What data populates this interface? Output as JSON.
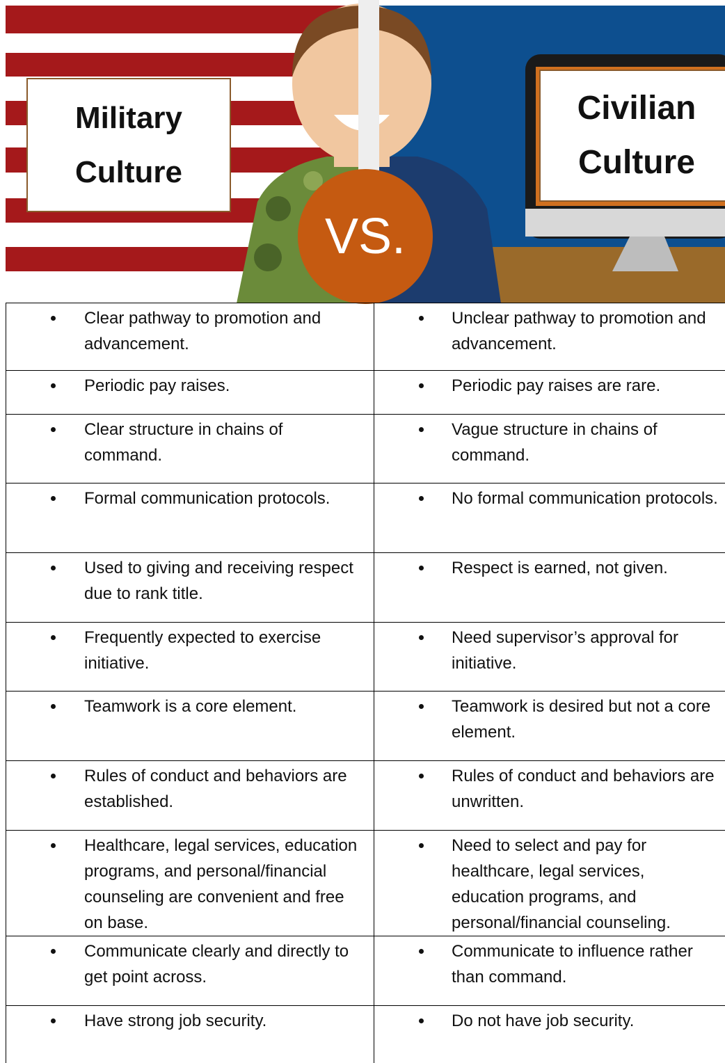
{
  "header": {
    "left_title": "Military Culture",
    "right_title": "Civilian Culture",
    "versus": "VS."
  },
  "table": {
    "rows": [
      [
        "Clear pathway to promotion and advancement.",
        "Unclear pathway to promotion and advancement."
      ],
      [
        "Periodic pay raises.",
        "Periodic pay raises are rare."
      ],
      [
        "Clear structure in chains of command.",
        "Vague structure in chains of command."
      ],
      [
        "Formal communication protocols.",
        "No formal communication protocols."
      ],
      [
        "Used to giving and receiving respect due to rank title.",
        "Respect is earned, not given."
      ],
      [
        "Frequently expected to exercise initiative.",
        "Need supervisor’s approval for initiative."
      ],
      [
        "Teamwork is a core element.",
        "Teamwork is desired but not a core element."
      ],
      [
        "Rules of conduct and behaviors are established.",
        "Rules of conduct and behaviors are unwritten."
      ],
      [
        "Healthcare, legal services, education programs, and personal/financial counseling are convenient and free on base.",
        "Need to select and pay for healthcare, legal services, education programs, and personal/financial counseling."
      ],
      [
        "Communicate clearly and directly to get point across.",
        "Communicate to influence rather than command."
      ],
      [
        "Have strong job security.",
        "Do not have job security."
      ]
    ]
  }
}
